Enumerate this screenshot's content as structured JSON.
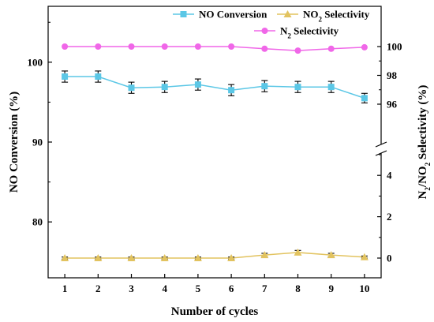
{
  "chart_data": {
    "type": "line",
    "x": [
      1,
      2,
      3,
      4,
      5,
      6,
      7,
      8,
      9,
      10
    ],
    "xlabel": "Number of cycles",
    "xlim": [
      0.5,
      10.5
    ],
    "ylabel_left": "NO Conversion (%)",
    "ylim_left": [
      73,
      107
    ],
    "yticks_left": [
      "80",
      "90",
      "100"
    ],
    "ylabel_right_parts": [
      "N",
      "2",
      "/NO",
      "2",
      " Selectivity (%)"
    ],
    "yticks_right_top": [
      "96",
      "98",
      "100"
    ],
    "yticks_right_bottom": [
      "0",
      "2",
      "4"
    ],
    "right_axis_break": true,
    "grid": false,
    "legend_position": "top-right",
    "series": [
      {
        "name": "NO Conversion",
        "axis": "left",
        "color": "#5bc7e6",
        "marker": "square",
        "values": [
          98.2,
          98.2,
          96.8,
          96.9,
          97.2,
          96.5,
          97.0,
          96.9,
          96.9,
          95.5
        ],
        "errors": [
          0.7,
          0.7,
          0.7,
          0.7,
          0.7,
          0.7,
          0.7,
          0.7,
          0.7,
          0.6
        ]
      },
      {
        "name_parts": [
          "NO",
          "2",
          " Selectivity"
        ],
        "axis": "right-bottom",
        "color": "#e2c35f",
        "marker": "triangle",
        "values": [
          0.0,
          0.0,
          0.0,
          0.0,
          0.0,
          0.0,
          0.15,
          0.27,
          0.15,
          0.05
        ],
        "errors": [
          0.05,
          0.05,
          0.05,
          0.05,
          0.05,
          0.05,
          0.08,
          0.1,
          0.08,
          0.05
        ]
      },
      {
        "name_parts": [
          "N",
          "2",
          " Selectivity"
        ],
        "axis": "right-top",
        "color": "#f067e8",
        "marker": "circle",
        "values": [
          100.0,
          100.0,
          100.0,
          100.0,
          100.0,
          100.0,
          99.85,
          99.72,
          99.85,
          99.95
        ]
      }
    ]
  }
}
